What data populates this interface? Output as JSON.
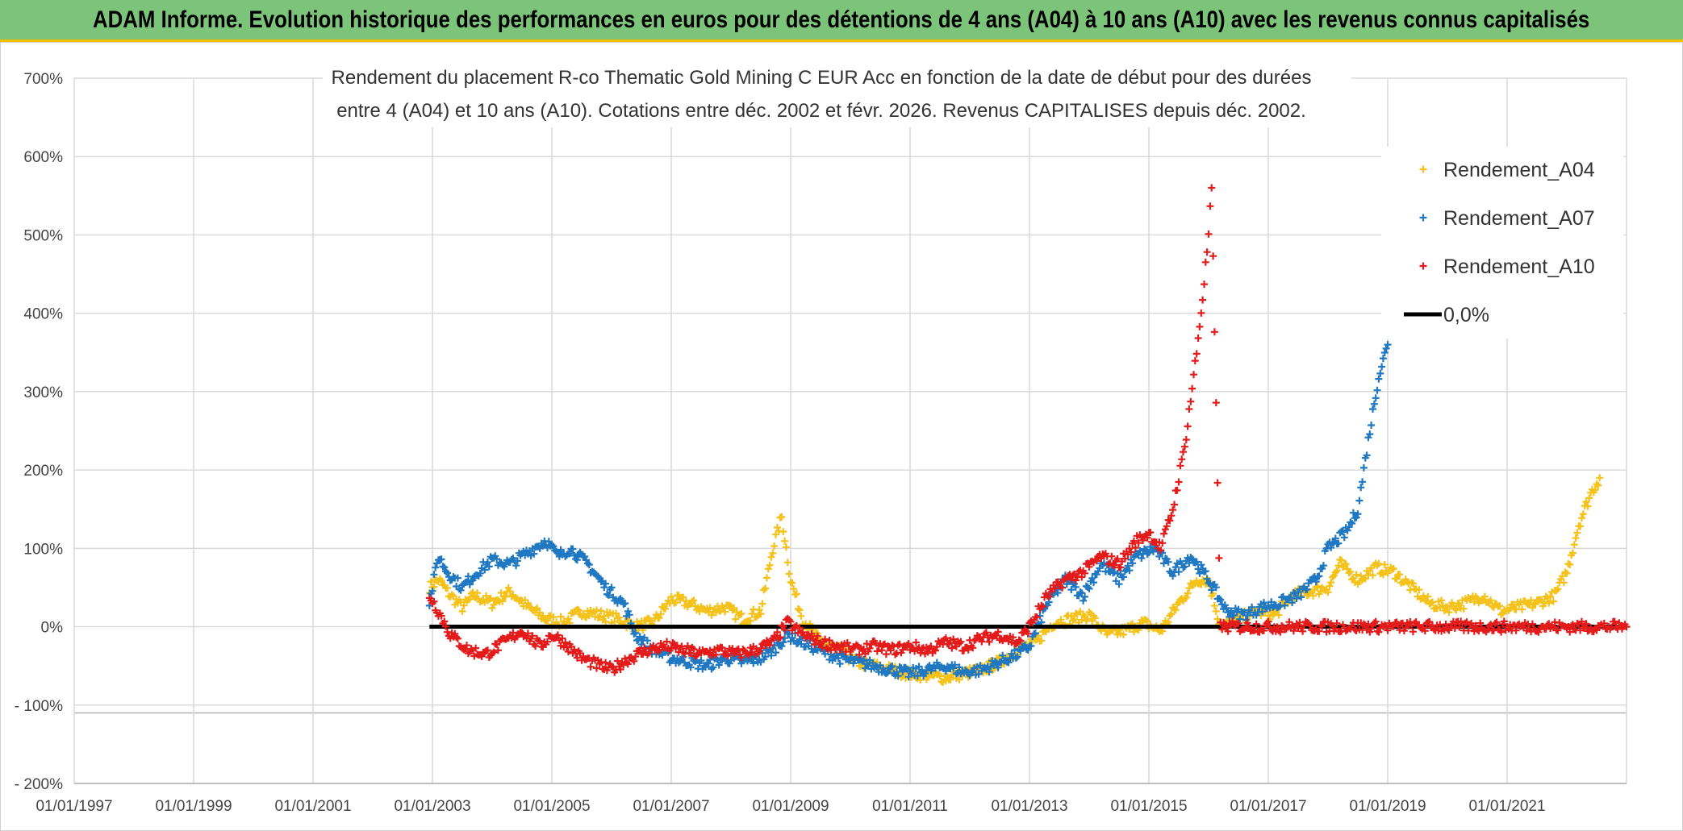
{
  "banner": {
    "title": "ADAM Informe. Evolution historique des performances en euros pour des détentions de 4 ans (A04) à 10 ans (A10) avec les revenus connus capitalisés"
  },
  "colors": {
    "banner_bg": "#7cc47a",
    "a04": "#f5c21b",
    "a07": "#1f78c1",
    "a10": "#e31b1b",
    "zero": "#000000"
  },
  "chart_data": {
    "type": "scatter",
    "title_lines": [
      "Rendement du placement R-co Thematic Gold Mining C EUR Acc en fonction de la date de début pour des durées",
      "entre 4 (A04) et 10 ans (A10). Cotations entre déc. 2002 et févr. 2026. Revenus CAPITALISES depuis déc. 2002."
    ],
    "xlabel": "",
    "ylabel": "",
    "x_range": [
      1997.0,
      2023.0
    ],
    "ylim": [
      -200,
      700
    ],
    "y_ticks": [
      700,
      600,
      500,
      400,
      300,
      200,
      100,
      0,
      -100,
      -200
    ],
    "y_tick_labels": [
      "700%",
      "600%",
      "500%",
      "400%",
      "300%",
      "200%",
      "100%",
      "0%",
      "- 100%",
      "- 200%"
    ],
    "x_ticks": [
      1997,
      1999,
      2001,
      2003,
      2005,
      2007,
      2009,
      2011,
      2013,
      2015,
      2017,
      2019,
      2021
    ],
    "x_tick_labels": [
      "01/01/1997",
      "01/01/1999",
      "01/01/2001",
      "01/01/2003",
      "01/01/2005",
      "01/01/2007",
      "01/01/2009",
      "01/01/2011",
      "01/01/2013",
      "01/01/2015",
      "01/01/2017",
      "01/01/2019",
      "01/01/2021"
    ],
    "legend": {
      "position": "top-right",
      "entries": [
        "Rendement_A04",
        "Rendement_A07",
        "Rendement_A10",
        "0,0%"
      ]
    },
    "series": [
      {
        "name": "Rendement_A04",
        "x": [
          2002.95,
          2003.1,
          2003.3,
          2003.5,
          2003.7,
          2004.0,
          2004.3,
          2004.6,
          2004.9,
          2005.2,
          2005.5,
          2005.8,
          2006.1,
          2006.4,
          2006.7,
          2007.0,
          2007.3,
          2007.6,
          2007.9,
          2008.2,
          2008.5,
          2008.7,
          2008.85,
          2009.0,
          2009.2,
          2009.5,
          2009.8,
          2010.1,
          2010.4,
          2010.7,
          2011.0,
          2011.3,
          2011.6,
          2011.9,
          2012.2,
          2012.5,
          2012.8,
          2013.1,
          2013.4,
          2013.7,
          2014.0,
          2014.3,
          2014.6,
          2014.9,
          2015.2,
          2015.5,
          2015.8,
          2016.0,
          2016.2,
          2016.5,
          2016.8,
          2017.1,
          2017.4,
          2017.7,
          2018.0,
          2018.2,
          2018.5,
          2018.8,
          2019.1,
          2019.4,
          2019.7,
          2020.0,
          2020.3,
          2020.6,
          2020.9,
          2021.2,
          2021.5,
          2021.8,
          2022.0,
          2022.2,
          2022.4,
          2022.55
        ],
        "values": [
          50,
          60,
          40,
          25,
          40,
          30,
          45,
          25,
          10,
          5,
          20,
          15,
          10,
          0,
          5,
          35,
          30,
          20,
          25,
          10,
          20,
          100,
          140,
          60,
          10,
          -20,
          -30,
          -45,
          -50,
          -55,
          -60,
          -62,
          -65,
          -60,
          -55,
          -45,
          -30,
          -20,
          5,
          10,
          15,
          -10,
          -5,
          5,
          -5,
          30,
          60,
          60,
          0,
          10,
          20,
          15,
          40,
          45,
          50,
          80,
          60,
          75,
          70,
          50,
          30,
          25,
          30,
          40,
          20,
          25,
          30,
          40,
          70,
          130,
          170,
          190
        ]
      },
      {
        "name": "Rendement_A07",
        "x": [
          2002.95,
          2003.1,
          2003.25,
          2003.5,
          2003.75,
          2004.0,
          2004.3,
          2004.6,
          2004.9,
          2005.1,
          2005.3,
          2005.6,
          2005.9,
          2006.2,
          2006.4,
          2006.7,
          2007.0,
          2007.3,
          2007.6,
          2007.9,
          2008.2,
          2008.5,
          2008.7,
          2008.95,
          2009.2,
          2009.5,
          2009.8,
          2010.1,
          2010.4,
          2010.7,
          2011.0,
          2011.3,
          2011.6,
          2011.9,
          2012.2,
          2012.5,
          2012.8,
          2013.0,
          2013.3,
          2013.6,
          2013.9,
          2014.2,
          2014.5,
          2014.8,
          2015.1,
          2015.4,
          2015.7,
          2016.0,
          2016.3,
          2016.6,
          2016.9,
          2017.2,
          2017.5,
          2017.8,
          2018.0,
          2018.3,
          2018.5,
          2018.7,
          2018.85,
          2019.0
        ],
        "values": [
          30,
          90,
          70,
          50,
          70,
          85,
          80,
          95,
          110,
          90,
          100,
          80,
          50,
          30,
          -10,
          -30,
          -40,
          -45,
          -50,
          -40,
          -45,
          -40,
          -30,
          -10,
          -20,
          -30,
          -40,
          -45,
          -50,
          -55,
          -60,
          -55,
          -50,
          -58,
          -55,
          -45,
          -35,
          -25,
          30,
          60,
          40,
          80,
          60,
          90,
          100,
          70,
          90,
          60,
          20,
          15,
          25,
          30,
          40,
          60,
          100,
          120,
          150,
          250,
          320,
          360
        ]
      },
      {
        "name": "Rendement_A10",
        "x": [
          2002.95,
          2003.1,
          2003.3,
          2003.6,
          2003.9,
          2004.2,
          2004.5,
          2004.8,
          2005.0,
          2005.2,
          2005.5,
          2005.8,
          2006.0,
          2006.3,
          2006.6,
          2006.9,
          2007.2,
          2007.5,
          2007.8,
          2008.1,
          2008.4,
          2008.7,
          2008.95,
          2009.2,
          2009.5,
          2009.8,
          2010.1,
          2010.4,
          2010.7,
          2011.0,
          2011.3,
          2011.6,
          2011.9,
          2012.2,
          2012.5,
          2012.8,
          2013.0,
          2013.3,
          2013.6,
          2013.9,
          2014.2,
          2014.5,
          2014.8,
          2015.0,
          2015.2,
          2015.4,
          2015.6,
          2015.8,
          2015.9,
          2016.0,
          2016.05,
          2016.2,
          2016.5,
          2017.0,
          2017.5,
          2018.0,
          2018.5,
          2019.0,
          2019.5,
          2020.0,
          2020.5,
          2021.0,
          2021.5,
          2022.0,
          2022.5,
          2023.0
        ],
        "values": [
          40,
          20,
          -10,
          -30,
          -35,
          -20,
          -5,
          -25,
          -10,
          -20,
          -40,
          -50,
          -55,
          -40,
          -30,
          -25,
          -30,
          -35,
          -30,
          -35,
          -30,
          -20,
          5,
          -10,
          -20,
          -25,
          -30,
          -25,
          -30,
          -25,
          -30,
          -20,
          -25,
          -15,
          -10,
          -20,
          0,
          40,
          60,
          70,
          90,
          80,
          110,
          120,
          100,
          150,
          230,
          350,
          420,
          500,
          560,
          0,
          0,
          0,
          0,
          0,
          0,
          0,
          0,
          0,
          0,
          0,
          0,
          0,
          0,
          0
        ]
      },
      {
        "name": "0,0%",
        "x": [
          2002.95,
          2023.0
        ],
        "values": [
          0,
          0
        ]
      }
    ]
  }
}
